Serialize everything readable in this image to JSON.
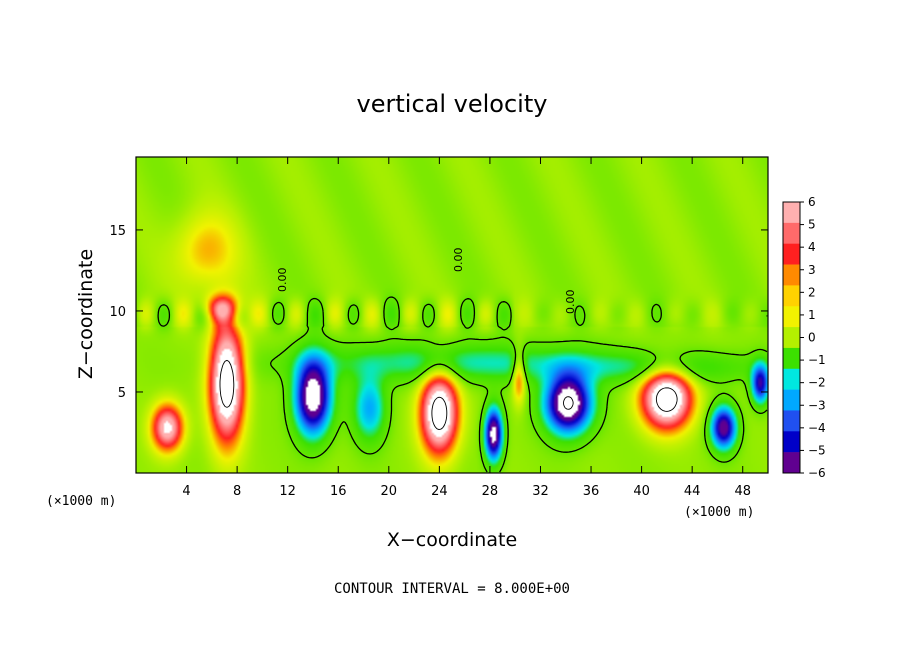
{
  "chart_data": {
    "type": "heatmap",
    "title": "vertical velocity",
    "xlabel": "X−coordinate",
    "ylabel": "Z−coordinate",
    "x_unit_left": "(×1000 m)",
    "x_unit_right": "(×1000 m)",
    "xlim": [
      0,
      50
    ],
    "ylim": [
      0,
      19.5
    ],
    "xticks": [
      4,
      8,
      12,
      16,
      20,
      24,
      28,
      32,
      36,
      40,
      44,
      48
    ],
    "xtick_labels": [
      "4",
      "8",
      "12",
      "16",
      "20",
      "24",
      "28",
      "32",
      "36",
      "40",
      "44",
      "48"
    ],
    "yticks": [
      5,
      10,
      15
    ],
    "ytick_labels": [
      "5",
      "10",
      "15"
    ],
    "colorbar": {
      "min": -6,
      "max": 6,
      "levels": [
        6,
        5,
        4,
        3,
        2,
        1,
        0,
        -1,
        -2,
        -3,
        -4,
        -5,
        -6
      ],
      "labels": [
        "6",
        "5",
        "4",
        "3",
        "2",
        "1",
        "0",
        "−1",
        "−2",
        "−3",
        "−4",
        "−5",
        "−6"
      ],
      "colors": [
        "#ffb0b0",
        "#ff6a6a",
        "#ff2020",
        "#ff8a00",
        "#ffd200",
        "#f2f200",
        "#b4f000",
        "#3ce000",
        "#00e8e0",
        "#00a8ff",
        "#2050f0",
        "#0000c8",
        "#600090"
      ]
    },
    "contour_label": "0.00",
    "footer": "CONTOUR INTERVAL = 8.000E+00",
    "features": [
      {
        "x": 2.5,
        "z": 2.8,
        "sx": 1.2,
        "sz": 1.4,
        "w": 6.5
      },
      {
        "x": 7.2,
        "z": 5.6,
        "sx": 1.3,
        "sz": 3.5,
        "w": 9
      },
      {
        "x": 6.8,
        "z": 10.2,
        "sx": 1.4,
        "sz": 0.8,
        "w": 3.5
      },
      {
        "x": 14.0,
        "z": 4.7,
        "sx": 1.4,
        "sz": 2.3,
        "w": -8.5
      },
      {
        "x": 18.5,
        "z": 4.0,
        "sx": 1.3,
        "sz": 2.0,
        "w": -3.5
      },
      {
        "x": 24.0,
        "z": 3.7,
        "sx": 1.4,
        "sz": 2.4,
        "w": 9
      },
      {
        "x": 28.3,
        "z": 2.4,
        "sx": 0.7,
        "sz": 1.6,
        "w": -8
      },
      {
        "x": 30.3,
        "z": 6.0,
        "sx": 0.5,
        "sz": 1.6,
        "w": 3.5
      },
      {
        "x": 34.2,
        "z": 4.3,
        "sx": 1.8,
        "sz": 1.8,
        "w": -9
      },
      {
        "x": 42.0,
        "z": 4.6,
        "sx": 1.9,
        "sz": 1.8,
        "w": 9
      },
      {
        "x": 46.5,
        "z": 2.8,
        "sx": 1.0,
        "sz": 1.3,
        "w": -7
      },
      {
        "x": 49.4,
        "z": 5.5,
        "sx": 0.7,
        "sz": 1.2,
        "w": -6
      },
      {
        "x": 25.0,
        "z": 6.8,
        "sx": 12.0,
        "sz": 1.2,
        "w": -2.4
      },
      {
        "x": 5.5,
        "z": 13.7,
        "sx": 2.4,
        "sz": 2.3,
        "w": 2.2
      },
      {
        "x": 41.5,
        "z": 6.5,
        "sx": 8.0,
        "sz": 1.0,
        "w": -1.8
      }
    ]
  }
}
